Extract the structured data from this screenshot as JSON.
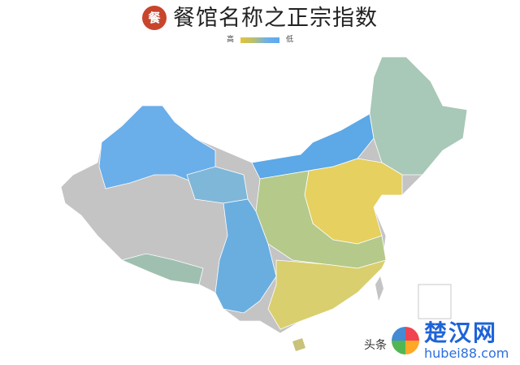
{
  "title": {
    "text": "餐馆名称之正宗指数",
    "logo_icon": "restaurant-logo-icon"
  },
  "legend": {
    "high": "高",
    "low": "低",
    "colors": {
      "high": "#e3c43a",
      "low": "#5aaaf0",
      "no_data": "#c4c4c4"
    }
  },
  "watermark": {
    "brand": "楚汉网",
    "url": "hubei88.com",
    "source": "头条"
  }
}
